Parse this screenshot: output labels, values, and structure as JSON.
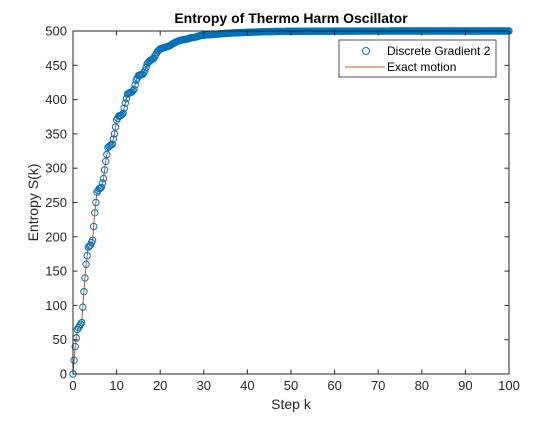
{
  "chart_data": {
    "type": "line",
    "title": "Entropy of Thermo Harm Oscillator",
    "xlabel": "Step k",
    "ylabel": "Entropy S(k)",
    "xlim": [
      0,
      100
    ],
    "ylim": [
      0,
      500
    ],
    "xticks": [
      0,
      10,
      20,
      30,
      40,
      50,
      60,
      70,
      80,
      90,
      100
    ],
    "yticks": [
      0,
      50,
      100,
      150,
      200,
      250,
      300,
      350,
      400,
      450,
      500
    ],
    "grid": false,
    "legend_position": "top-right",
    "series": [
      {
        "name": "Discrete Gradient 2",
        "marker": "circle",
        "color": "#0072BD",
        "x": [
          0,
          0.5,
          1,
          1.5,
          2,
          2.5,
          3,
          3.5,
          4,
          4.5,
          5,
          5.5,
          6,
          6.5,
          7,
          7.5,
          8,
          8.5,
          9,
          9.5,
          10,
          10.5,
          11,
          11.5,
          12,
          12.5,
          13,
          13.5,
          14,
          14.5,
          15,
          15.5,
          16,
          16.5,
          17,
          17.5,
          18,
          18.5,
          19,
          19.5,
          20,
          21,
          22,
          23,
          24,
          25,
          26,
          27,
          28,
          29,
          30,
          32,
          34,
          36,
          38,
          40,
          42,
          44,
          46,
          48,
          50,
          55,
          60,
          65,
          70,
          75,
          80,
          85,
          90,
          95,
          100
        ],
        "values": [
          0,
          40,
          65,
          70,
          75,
          120,
          160,
          185,
          188,
          195,
          235,
          265,
          270,
          272,
          285,
          310,
          330,
          333,
          335,
          350,
          370,
          376,
          377,
          380,
          395,
          408,
          410,
          411,
          415,
          428,
          435,
          436,
          437,
          442,
          452,
          456,
          458,
          460,
          466,
          471,
          474,
          476,
          478,
          482,
          485,
          487,
          488,
          490,
          491,
          493,
          494,
          495,
          496,
          497,
          497.5,
          498,
          498.5,
          499,
          499.2,
          499.4,
          499.5,
          499.7,
          499.8,
          499.9,
          499.95,
          500,
          500,
          500,
          500,
          500,
          500
        ]
      },
      {
        "name": "Exact motion",
        "marker": "line",
        "color": "#D95319",
        "x": [
          0,
          0.5,
          1,
          1.5,
          2,
          2.5,
          3,
          3.5,
          4,
          4.5,
          5,
          5.5,
          6,
          6.5,
          7,
          7.5,
          8,
          8.5,
          9,
          9.5,
          10,
          10.5,
          11,
          11.5,
          12,
          12.5,
          13,
          13.5,
          14,
          14.5,
          15,
          15.5,
          16,
          16.5,
          17,
          17.5,
          18,
          18.5,
          19,
          19.5,
          20,
          21,
          22,
          23,
          24,
          25,
          26,
          27,
          28,
          29,
          30,
          32,
          34,
          36,
          38,
          40,
          42,
          44,
          46,
          48,
          50,
          55,
          60,
          65,
          70,
          75,
          80,
          85,
          90,
          95,
          100
        ],
        "values": [
          0,
          40,
          65,
          70,
          75,
          120,
          160,
          185,
          188,
          195,
          235,
          265,
          270,
          272,
          285,
          310,
          330,
          333,
          335,
          350,
          370,
          376,
          377,
          380,
          395,
          408,
          410,
          411,
          415,
          428,
          435,
          436,
          437,
          442,
          452,
          456,
          458,
          460,
          466,
          471,
          474,
          476,
          478,
          482,
          485,
          487,
          488,
          490,
          491,
          493,
          494,
          495,
          496,
          497,
          497.5,
          498,
          498.5,
          499,
          499.2,
          499.4,
          499.5,
          499.7,
          499.8,
          499.9,
          499.95,
          500,
          500,
          500,
          500,
          500,
          500
        ]
      }
    ]
  }
}
